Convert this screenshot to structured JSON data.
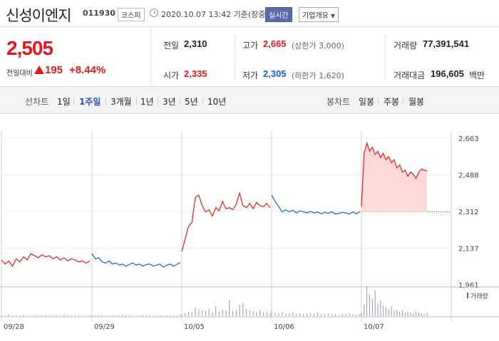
{
  "header": {
    "name": "신성이엔지",
    "code": "011930",
    "market": "코스피",
    "datetime": "2020.10.07 13:42 기준(장중)",
    "realtime": "실시간",
    "company_info": "기업개요"
  },
  "quote": {
    "price": "2,505",
    "change_label": "전일대비",
    "change_amount": "195",
    "change_rate": "+8.44%",
    "prev_close_label": "전일",
    "prev_close": "2,310",
    "open_label": "시가",
    "open": "2,335",
    "high_label": "고가",
    "high": "2,665",
    "upper_limit": "(상한가 3,000)",
    "low_label": "저가",
    "low": "2,305",
    "lower_limit": "(하한가 1,620)",
    "volume_label": "거래량",
    "volume": "77,391,541",
    "amount_label": "거래대금",
    "amount": "196,605",
    "amount_unit": "백만"
  },
  "periods": {
    "line_label": "선차트",
    "line": [
      "1일",
      "1주일",
      "3개월",
      "1년",
      "3년",
      "5년",
      "10년"
    ],
    "active": "1주일",
    "candle_label": "봉차트",
    "candle": [
      "일봉",
      "주봉",
      "월봉"
    ]
  },
  "colors": {
    "up": "#e0191e",
    "down": "#1a5fcf",
    "fill": "#fbd9d9"
  },
  "chart_data": {
    "type": "line",
    "title": "",
    "y_ticks": [
      "2,663",
      "2,488",
      "2,312",
      "2,137",
      "1,961"
    ],
    "ylim": [
      1961,
      2663
    ],
    "x_ticks": [
      "09/28",
      "09/29",
      "10/05",
      "10/06",
      "10/07"
    ],
    "reference_line": 2310,
    "volume_legend": "거래량",
    "series": [
      {
        "day": "09/28",
        "values": [
          2080,
          2060,
          2075,
          2050,
          2085,
          2070,
          2095,
          2080,
          2110,
          2100,
          2090,
          2105,
          2095,
          2100,
          2085,
          2095,
          2080,
          2090,
          2075,
          2085,
          2080,
          2070,
          2075,
          2065,
          2075
        ]
      },
      {
        "day": "09/29",
        "values": [
          2110,
          2085,
          2090,
          2070,
          2065,
          2075,
          2060,
          2065,
          2055,
          2060,
          2050,
          2058,
          2065,
          2055,
          2060,
          2050,
          2058,
          2060,
          2050,
          2055,
          2060,
          2045,
          2055,
          2060,
          2050,
          2058,
          2068
        ]
      },
      {
        "day": "10/05",
        "values": [
          2120,
          2180,
          2240,
          2260,
          2380,
          2390,
          2340,
          2310,
          2320,
          2290,
          2330,
          2315,
          2360,
          2325,
          2330,
          2320,
          2345,
          2400,
          2340,
          2330,
          2350,
          2325,
          2355,
          2340,
          2335,
          2350,
          2330
        ]
      },
      {
        "day": "10/06",
        "values": [
          2390,
          2360,
          2335,
          2310,
          2320,
          2310,
          2318,
          2305,
          2315,
          2310,
          2305,
          2312,
          2305,
          2310,
          2300,
          2308,
          2303,
          2310,
          2300,
          2302,
          2308,
          2305,
          2300,
          2310,
          2300,
          2312
        ]
      },
      {
        "day": "10/07",
        "values": [
          2335,
          2590,
          2640,
          2600,
          2620,
          2585,
          2600,
          2570,
          2590,
          2560,
          2575,
          2545,
          2560,
          2520,
          2535,
          2500,
          2510,
          2480,
          2500,
          2490,
          2470,
          2500,
          2515,
          2510,
          2505
        ]
      }
    ],
    "volume": [
      [
        1,
        1,
        2,
        1,
        1,
        1,
        2,
        1,
        1,
        1,
        1,
        1,
        2,
        1,
        1,
        1,
        1,
        2,
        1,
        1,
        1,
        1,
        1,
        1,
        1
      ],
      [
        2,
        1,
        1,
        1,
        1,
        1,
        1,
        1,
        1,
        2,
        1,
        1,
        1,
        1,
        1,
        1,
        1,
        1,
        1,
        1,
        1,
        1,
        1,
        1,
        1,
        1,
        2
      ],
      [
        3,
        4,
        6,
        5,
        12,
        9,
        8,
        7,
        10,
        5,
        14,
        6,
        9,
        8,
        22,
        7,
        9,
        16,
        18,
        10,
        8,
        7,
        6,
        9,
        5,
        6,
        4
      ],
      [
        8,
        5,
        4,
        6,
        3,
        4,
        5,
        3,
        4,
        3,
        3,
        4,
        3,
        5,
        3,
        3,
        4,
        3,
        3,
        2,
        3,
        3,
        4,
        3,
        2,
        3
      ],
      [
        4,
        16,
        42,
        30,
        24,
        36,
        18,
        22,
        15,
        12,
        10,
        14,
        8,
        9,
        6,
        8,
        5,
        6,
        5,
        4,
        7,
        5,
        4,
        3,
        5
      ]
    ]
  }
}
